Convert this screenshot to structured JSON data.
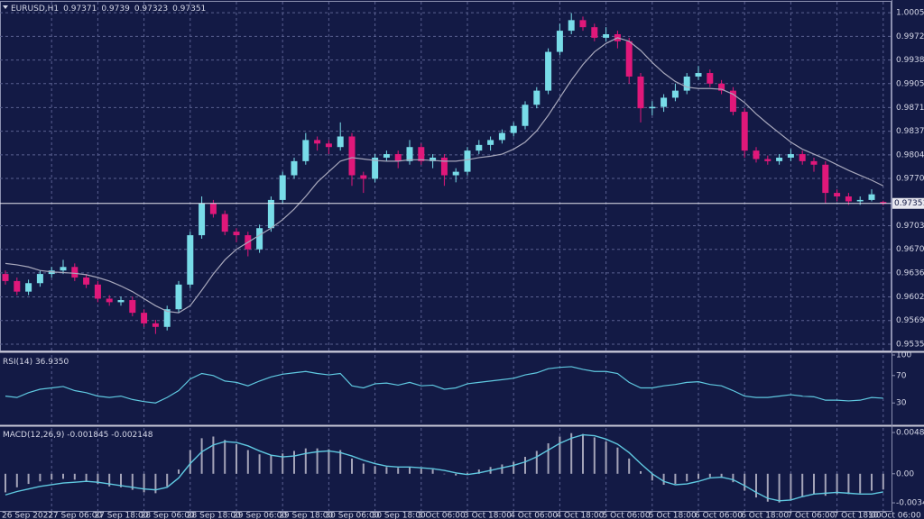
{
  "chart_data": [
    {
      "type": "candlestick",
      "title": "EURUSD,H1",
      "categories": [
        "26 Sep 2022",
        null,
        null,
        null,
        "27 Sep 06:00",
        null,
        null,
        null,
        "27 Sep 18:00",
        null,
        null,
        null,
        "28 Sep 06:00",
        null,
        null,
        null,
        "28 Sep 18:00",
        null,
        null,
        null,
        "29 Sep 06:00",
        null,
        null,
        null,
        "29 Sep 18:00",
        null,
        null,
        null,
        "30 Sep 06:00",
        null,
        null,
        null,
        "30 Sep 18:00",
        null,
        null,
        null,
        "3 Oct 06:00",
        null,
        null,
        null,
        "3 Oct 18:00",
        null,
        null,
        null,
        "4 Oct 06:00",
        null,
        null,
        null,
        "4 Oct 18:00",
        null,
        null,
        null,
        "5 Oct 06:00",
        null,
        null,
        null,
        "5 Oct 18:00",
        null,
        null,
        null,
        "6 Oct 06:00",
        null,
        null,
        null,
        "6 Oct 18:00",
        null,
        null,
        null,
        "7 Oct 06:00",
        null,
        null,
        null,
        "7 Oct 18:00",
        null,
        null,
        null,
        "10 Oct 06:00"
      ],
      "ohlc": [
        [
          0.9635,
          0.964,
          0.962,
          0.9625
        ],
        [
          0.9625,
          0.963,
          0.9605,
          0.961
        ],
        [
          0.961,
          0.9627,
          0.9605,
          0.9622
        ],
        [
          0.9622,
          0.964,
          0.9617,
          0.9635
        ],
        [
          0.9635,
          0.9645,
          0.963,
          0.964
        ],
        [
          0.964,
          0.9655,
          0.9635,
          0.9645
        ],
        [
          0.9645,
          0.965,
          0.9625,
          0.963
        ],
        [
          0.963,
          0.9635,
          0.9615,
          0.962
        ],
        [
          0.962,
          0.9625,
          0.9595,
          0.96
        ],
        [
          0.96,
          0.9605,
          0.959,
          0.9595
        ],
        [
          0.9595,
          0.9603,
          0.959,
          0.9598
        ],
        [
          0.9598,
          0.9603,
          0.9575,
          0.958
        ],
        [
          0.958,
          0.9585,
          0.956,
          0.9565
        ],
        [
          0.9565,
          0.957,
          0.955,
          0.956
        ],
        [
          0.956,
          0.959,
          0.9555,
          0.9585
        ],
        [
          0.9585,
          0.9625,
          0.958,
          0.962
        ],
        [
          0.962,
          0.9695,
          0.9615,
          0.969
        ],
        [
          0.969,
          0.9745,
          0.9685,
          0.9735
        ],
        [
          0.9735,
          0.974,
          0.9715,
          0.972
        ],
        [
          0.972,
          0.9725,
          0.969,
          0.9695
        ],
        [
          0.9695,
          0.97,
          0.968,
          0.969
        ],
        [
          0.969,
          0.9695,
          0.966,
          0.967
        ],
        [
          0.967,
          0.9705,
          0.9665,
          0.97
        ],
        [
          0.97,
          0.9745,
          0.9695,
          0.974
        ],
        [
          0.974,
          0.978,
          0.9735,
          0.9775
        ],
        [
          0.9775,
          0.98,
          0.977,
          0.9795
        ],
        [
          0.9795,
          0.9835,
          0.979,
          0.9825
        ],
        [
          0.9825,
          0.983,
          0.981,
          0.982
        ],
        [
          0.982,
          0.9825,
          0.9805,
          0.9815
        ],
        [
          0.9815,
          0.985,
          0.981,
          0.983
        ],
        [
          0.983,
          0.9835,
          0.976,
          0.9775
        ],
        [
          0.9775,
          0.978,
          0.975,
          0.977
        ],
        [
          0.977,
          0.9805,
          0.9765,
          0.98
        ],
        [
          0.98,
          0.981,
          0.9795,
          0.9805
        ],
        [
          0.9805,
          0.981,
          0.9785,
          0.9795
        ],
        [
          0.9795,
          0.9825,
          0.979,
          0.9815
        ],
        [
          0.9815,
          0.982,
          0.979,
          0.9795
        ],
        [
          0.9795,
          0.9805,
          0.9785,
          0.98
        ],
        [
          0.98,
          0.9805,
          0.976,
          0.9775
        ],
        [
          0.9775,
          0.9785,
          0.9765,
          0.978
        ],
        [
          0.978,
          0.9815,
          0.9775,
          0.981
        ],
        [
          0.981,
          0.9825,
          0.9805,
          0.9818
        ],
        [
          0.9818,
          0.983,
          0.981,
          0.9825
        ],
        [
          0.9825,
          0.984,
          0.982,
          0.9835
        ],
        [
          0.9835,
          0.985,
          0.983,
          0.9845
        ],
        [
          0.9845,
          0.988,
          0.984,
          0.9875
        ],
        [
          0.9875,
          0.99,
          0.987,
          0.9895
        ],
        [
          0.9895,
          0.9955,
          0.989,
          0.995
        ],
        [
          0.995,
          0.999,
          0.9945,
          0.998
        ],
        [
          0.998,
          1.0005,
          0.9975,
          0.9995
        ],
        [
          0.9995,
          1.0,
          0.998,
          0.9985
        ],
        [
          0.9985,
          0.999,
          0.9965,
          0.997
        ],
        [
          0.997,
          0.9985,
          0.9965,
          0.9975
        ],
        [
          0.9975,
          0.998,
          0.9955,
          0.9965
        ],
        [
          0.9965,
          0.997,
          0.9905,
          0.9915
        ],
        [
          0.9915,
          0.992,
          0.985,
          0.987
        ],
        [
          0.987,
          0.988,
          0.986,
          0.9872
        ],
        [
          0.9872,
          0.989,
          0.9865,
          0.9885
        ],
        [
          0.9885,
          0.9905,
          0.988,
          0.9895
        ],
        [
          0.9895,
          0.992,
          0.989,
          0.9915
        ],
        [
          0.9915,
          0.993,
          0.991,
          0.992
        ],
        [
          0.992,
          0.9925,
          0.99,
          0.9905
        ],
        [
          0.9905,
          0.991,
          0.989,
          0.9895
        ],
        [
          0.9895,
          0.99,
          0.986,
          0.9865
        ],
        [
          0.9865,
          0.987,
          0.98,
          0.981
        ],
        [
          0.981,
          0.9815,
          0.9793,
          0.9798
        ],
        [
          0.9798,
          0.9803,
          0.979,
          0.9795
        ],
        [
          0.9795,
          0.9805,
          0.979,
          0.98
        ],
        [
          0.98,
          0.9812,
          0.9795,
          0.9805
        ],
        [
          0.9805,
          0.981,
          0.979,
          0.9795
        ],
        [
          0.9795,
          0.98,
          0.978,
          0.979
        ],
        [
          0.979,
          0.9795,
          0.9735,
          0.975
        ],
        [
          0.975,
          0.9755,
          0.9738,
          0.9745
        ],
        [
          0.9745,
          0.975,
          0.9733,
          0.9738
        ],
        [
          0.9738,
          0.9745,
          0.9733,
          0.974
        ],
        [
          0.974,
          0.9755,
          0.9738,
          0.9748
        ],
        [
          0.97371,
          0.9739,
          0.97323,
          0.97351
        ]
      ],
      "up_color": "#78dce8",
      "down_color": "#e0187a",
      "overlay": {
        "color": "#a8a8bc",
        "values": [
          0.965,
          0.9648,
          0.9645,
          0.964,
          0.9638,
          0.9637,
          0.9636,
          0.9634,
          0.963,
          0.9625,
          0.9618,
          0.961,
          0.96,
          0.959,
          0.9582,
          0.958,
          0.959,
          0.9612,
          0.9635,
          0.9655,
          0.967,
          0.968,
          0.969,
          0.97,
          0.9712,
          0.9727,
          0.9745,
          0.9765,
          0.978,
          0.9795,
          0.98,
          0.9798,
          0.9796,
          0.9795,
          0.9795,
          0.9797,
          0.9797,
          0.9796,
          0.9795,
          0.9795,
          0.9797,
          0.98,
          0.9802,
          0.9805,
          0.9812,
          0.9822,
          0.9838,
          0.986,
          0.9885,
          0.991,
          0.9932,
          0.995,
          0.9962,
          0.997,
          0.9965,
          0.9952,
          0.9935,
          0.992,
          0.9908,
          0.99,
          0.9898,
          0.9898,
          0.9897,
          0.989,
          0.9878,
          0.9862,
          0.9848,
          0.9835,
          0.9822,
          0.9812,
          0.9805,
          0.9798,
          0.979,
          0.9782,
          0.9775,
          0.9768,
          0.976
        ]
      },
      "ylim": [
        0.95265,
        1.0021
      ],
      "yticks": [
        1.00055,
        {
          "value": 0.9972,
          "label": "0.99720"
        },
        0.99385,
        {
          "value": 0.9905,
          "label": "0.99050"
        },
        {
          "value": 0.9871,
          "label": "0.98710"
        },
        0.98375,
        {
          "value": 0.9804,
          "label": "0.98040"
        },
        0.97705,
        0.97035,
        {
          "value": 0.967,
          "label": "0.96700"
        },
        0.96365,
        0.96025,
        {
          "value": 0.9569,
          "label": "0.95690"
        },
        0.95355
      ],
      "grid": true
    },
    {
      "type": "line",
      "title": "RSI(14) 36.9350",
      "color": "#5fc8e0",
      "values": [
        40,
        38,
        45,
        50,
        52,
        54,
        48,
        45,
        40,
        38,
        40,
        35,
        32,
        30,
        38,
        48,
        65,
        73,
        70,
        62,
        60,
        55,
        62,
        68,
        72,
        74,
        76,
        73,
        71,
        73,
        55,
        52,
        58,
        59,
        56,
        60,
        55,
        56,
        50,
        52,
        58,
        60,
        62,
        64,
        66,
        71,
        74,
        80,
        82,
        83,
        79,
        76,
        76,
        73,
        60,
        52,
        52,
        55,
        57,
        60,
        61,
        57,
        55,
        48,
        40,
        38,
        38,
        40,
        42,
        40,
        39,
        34,
        34,
        33,
        34,
        38,
        36.935
      ],
      "ylim": [
        0,
        100
      ],
      "yticks": [
        100,
        70,
        30
      ]
    },
    {
      "type": "macd",
      "title": "MACD(12,26,9) -0.001845 -0.002148",
      "series": [
        {
          "type": "bar",
          "color": "#a4a4b8",
          "values": [
            -0.0022,
            -0.0016,
            -0.0012,
            -0.0009,
            -0.0007,
            -0.0006,
            -0.0007,
            -0.0009,
            -0.0012,
            -0.0015,
            -0.0016,
            -0.0019,
            -0.0022,
            -0.0023,
            -0.0015,
            0.0005,
            0.0028,
            0.0042,
            0.0044,
            0.004,
            0.0035,
            0.0028,
            0.0023,
            0.0022,
            0.0024,
            0.0027,
            0.003,
            0.003,
            0.0029,
            0.0028,
            0.0018,
            0.0012,
            0.0009,
            0.0008,
            0.0007,
            0.0008,
            0.0006,
            0.0005,
            0.0,
            -0.0002,
            0.0001,
            0.0005,
            0.0008,
            0.0011,
            0.0014,
            0.002,
            0.0027,
            0.0036,
            0.0044,
            0.0048,
            0.0047,
            0.0043,
            0.0038,
            0.0031,
            0.0018,
            0.0003,
            -0.0008,
            -0.0013,
            -0.0012,
            -0.0009,
            -0.0006,
            -0.0004,
            -0.0005,
            -0.001,
            -0.002,
            -0.0028,
            -0.0033,
            -0.0034,
            -0.0031,
            -0.0027,
            -0.0024,
            -0.0026,
            -0.0024,
            -0.0024,
            -0.0023,
            -0.002,
            -0.001845
          ]
        },
        {
          "type": "line",
          "color": "#5fc8e0",
          "values": [
            -0.0025,
            -0.0021,
            -0.0018,
            -0.0015,
            -0.0013,
            -0.0011,
            -0.001,
            -0.0009,
            -0.001,
            -0.0012,
            -0.0014,
            -0.0016,
            -0.0018,
            -0.0019,
            -0.0016,
            -0.0005,
            0.0012,
            0.0026,
            0.0034,
            0.0038,
            0.0037,
            0.0033,
            0.0027,
            0.0022,
            0.002,
            0.0021,
            0.0024,
            0.0026,
            0.0027,
            0.0025,
            0.0021,
            0.0016,
            0.0012,
            0.0009,
            0.0008,
            0.0008,
            0.0007,
            0.0006,
            0.0004,
            0.0001,
            -0.0001,
            0.0001,
            0.0004,
            0.0007,
            0.001,
            0.0014,
            0.002,
            0.0028,
            0.0036,
            0.0042,
            0.0046,
            0.0045,
            0.0041,
            0.0035,
            0.0025,
            0.0012,
            0.0,
            -0.0009,
            -0.0013,
            -0.0012,
            -0.0009,
            -0.0005,
            -0.0004,
            -0.0007,
            -0.0014,
            -0.0022,
            -0.0029,
            -0.0032,
            -0.0031,
            -0.0027,
            -0.0024,
            -0.0023,
            -0.0022,
            -0.0023,
            -0.0024,
            -0.0024,
            -0.002148
          ]
        }
      ],
      "ylim": [
        -0.00439,
        0.00541
      ],
      "yticks": [
        0.004878,
        {
          "value": 0,
          "label": "0.00"
        },
        -0.003436
      ]
    }
  ]
}
